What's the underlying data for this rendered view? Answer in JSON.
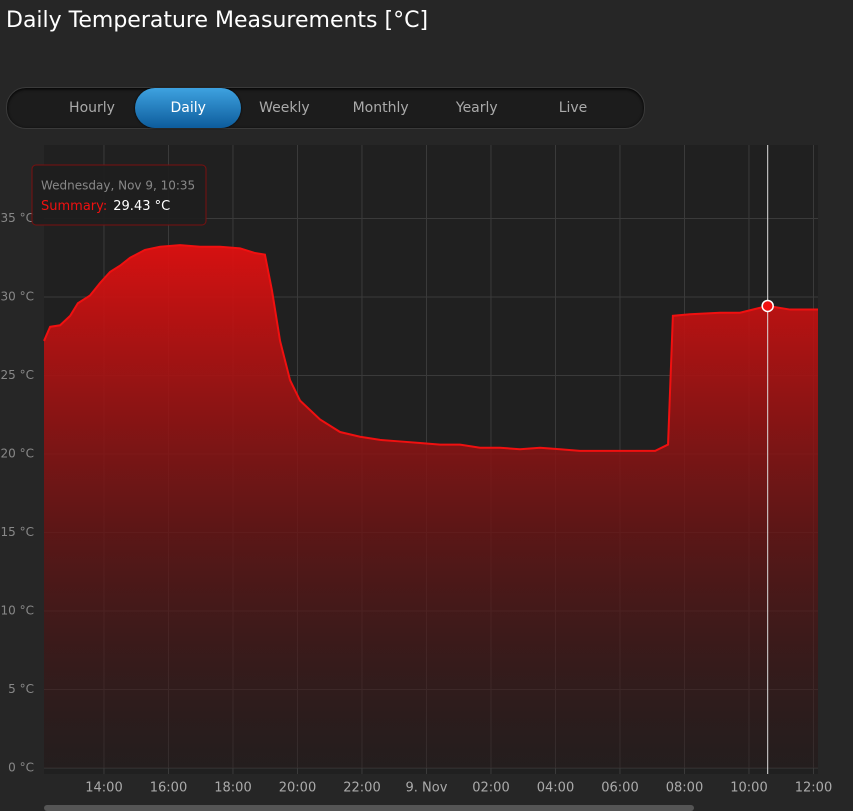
{
  "header": {
    "title": "Daily Temperature Measurements [°C]"
  },
  "tabs": {
    "items": [
      "Hourly",
      "Daily",
      "Weekly",
      "Monthly",
      "Yearly",
      "Live"
    ],
    "active": 1
  },
  "chart_data": {
    "type": "area",
    "x": [
      12.14,
      12.33,
      12.64,
      12.95,
      13.19,
      13.57,
      13.88,
      14.19,
      14.5,
      14.81,
      15.27,
      15.74,
      16.36,
      16.98,
      17.6,
      18.22,
      18.68,
      18.99,
      19.21,
      19.46,
      19.77,
      20.08,
      20.7,
      21.32,
      21.94,
      22.56,
      23.18,
      23.8,
      24.42,
      25.04,
      25.66,
      26.28,
      26.9,
      27.52,
      28.14,
      28.76,
      29.38,
      30.0,
      30.62,
      31.09,
      31.49,
      31.64,
      32.17,
      33.1,
      33.72,
      34.58,
      35.27,
      36.14
    ],
    "series": [
      {
        "name": "Summary",
        "color": "#f01010",
        "values": [
          27.2,
          28.1,
          28.2,
          28.8,
          29.6,
          30.1,
          30.9,
          31.6,
          32.0,
          32.5,
          33.0,
          33.2,
          33.3,
          33.2,
          33.2,
          33.1,
          32.8,
          32.7,
          30.4,
          27.2,
          24.7,
          23.4,
          22.2,
          21.4,
          21.1,
          20.9,
          20.8,
          20.7,
          20.6,
          20.6,
          20.4,
          20.4,
          20.3,
          20.4,
          20.3,
          20.2,
          20.2,
          20.2,
          20.2,
          20.2,
          20.6,
          28.8,
          28.9,
          29.0,
          29.0,
          29.43,
          29.2,
          29.2
        ]
      }
    ],
    "xlim": [
      12.14,
      36.14
    ],
    "xticks": [
      {
        "value": 14,
        "label": "14:00"
      },
      {
        "value": 16,
        "label": "16:00"
      },
      {
        "value": 18,
        "label": "18:00"
      },
      {
        "value": 20,
        "label": "20:00"
      },
      {
        "value": 22,
        "label": "22:00"
      },
      {
        "value": 24,
        "label": "9. Nov"
      },
      {
        "value": 26,
        "label": "02:00"
      },
      {
        "value": 28,
        "label": "04:00"
      },
      {
        "value": 30,
        "label": "06:00"
      },
      {
        "value": 32,
        "label": "08:00"
      },
      {
        "value": 34,
        "label": "10:00"
      },
      {
        "value": 36,
        "label": "12:00"
      }
    ],
    "ylim": [
      0,
      40
    ],
    "yticks": [
      {
        "value": 0,
        "label": "0 °C"
      },
      {
        "value": 5,
        "label": "5 °C"
      },
      {
        "value": 10,
        "label": "10 °C"
      },
      {
        "value": 15,
        "label": "15 °C"
      },
      {
        "value": 20,
        "label": "20 °C"
      },
      {
        "value": 25,
        "label": "25 °C"
      },
      {
        "value": 30,
        "label": "30 °C"
      },
      {
        "value": 35,
        "label": "35 °C"
      }
    ],
    "grid": true,
    "tooltip": {
      "title": "Wednesday, Nov 9, 10:35",
      "series_label": "Summary:",
      "x": 34.58,
      "value": 29.43,
      "value_label": "29.43 °C"
    }
  }
}
